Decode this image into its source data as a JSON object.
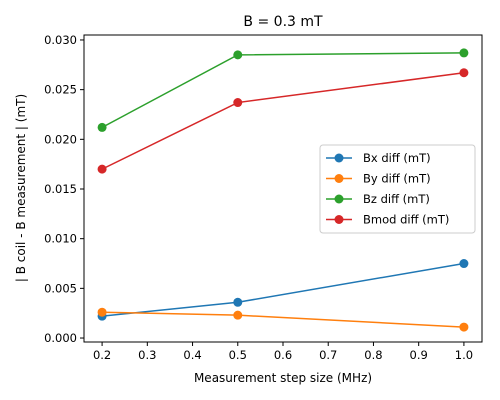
{
  "chart_data": {
    "type": "line",
    "title": "B = 0.3 mT",
    "xlabel": "Measurement step size (MHz)",
    "ylabel": "| B coil - B measurement | (mT)",
    "x": [
      0.2,
      0.5,
      1.0
    ],
    "xlim": [
      0.16,
      1.04
    ],
    "ylim": [
      -0.0004,
      0.0305
    ],
    "xticks": [
      "0.2",
      "0.3",
      "0.4",
      "0.5",
      "0.6",
      "0.7",
      "0.8",
      "0.9",
      "1.0"
    ],
    "yticks": [
      "0.000",
      "0.005",
      "0.010",
      "0.015",
      "0.020",
      "0.025",
      "0.030"
    ],
    "grid": false,
    "legend_position": "center-right",
    "series": [
      {
        "name": "Bx diff (mT)",
        "color": "#1f77b4",
        "values": [
          0.0022,
          0.0036,
          0.0075
        ]
      },
      {
        "name": "By diff (mT)",
        "color": "#ff7f0e",
        "values": [
          0.0026,
          0.0023,
          0.0011
        ]
      },
      {
        "name": "Bz diff (mT)",
        "color": "#2ca02c",
        "values": [
          0.0212,
          0.0285,
          0.0287
        ]
      },
      {
        "name": "Bmod diff (mT)",
        "color": "#d62728",
        "values": [
          0.017,
          0.0237,
          0.0267
        ]
      }
    ]
  }
}
